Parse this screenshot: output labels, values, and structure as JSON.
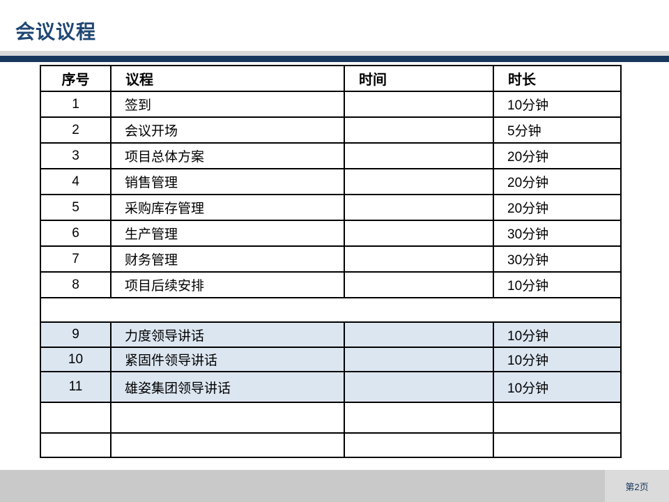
{
  "slide": {
    "title": "会议议程",
    "footer": {
      "page_label": "第2页"
    }
  },
  "agenda_table": {
    "headers": [
      "序号",
      "议程",
      "时间",
      "时长"
    ],
    "rows": [
      {
        "no": "1",
        "agenda": "签到",
        "time": "",
        "duration": "10分钟",
        "highlight": false
      },
      {
        "no": "2",
        "agenda": "会议开场",
        "time": "",
        "duration": "5分钟",
        "highlight": false
      },
      {
        "no": "3",
        "agenda": "项目总体方案",
        "time": "",
        "duration": "20分钟",
        "highlight": false
      },
      {
        "no": "4",
        "agenda": "销售管理",
        "time": "",
        "duration": "20分钟",
        "highlight": false
      },
      {
        "no": "5",
        "agenda": "采购库存管理",
        "time": "",
        "duration": "20分钟",
        "highlight": false
      },
      {
        "no": "6",
        "agenda": "生产管理",
        "time": "",
        "duration": "30分钟",
        "highlight": false
      },
      {
        "no": "7",
        "agenda": "财务管理",
        "time": "",
        "duration": "30分钟",
        "highlight": false
      },
      {
        "no": "8",
        "agenda": "项目后续安排",
        "time": "",
        "duration": "10分钟",
        "highlight": false
      },
      {
        "merged": true
      },
      {
        "no": "9",
        "agenda": "力度领导讲话",
        "time": "",
        "duration": "10分钟",
        "highlight": true
      },
      {
        "no": "10",
        "agenda": "紧固件领导讲话",
        "time": "",
        "duration": "10分钟",
        "highlight": true
      },
      {
        "no": "11",
        "agenda": "雄姿集团领导讲话",
        "time": "",
        "duration": "10分钟",
        "highlight": true
      },
      {
        "no": "",
        "agenda": "",
        "time": "",
        "duration": "",
        "highlight": false
      },
      {
        "no": "",
        "agenda": "",
        "time": "",
        "duration": "",
        "highlight": false
      }
    ]
  },
  "colors": {
    "title_color": "#1F4673",
    "accent_bar": "#17375E",
    "gray_bar": "#D9D9D9",
    "highlight_row": "#DCE6F1",
    "footer_bg": "#C9C9C9",
    "footer_panel_bg": "#DBDBDB",
    "footer_text": "#17375E",
    "table_border": "#000000"
  }
}
